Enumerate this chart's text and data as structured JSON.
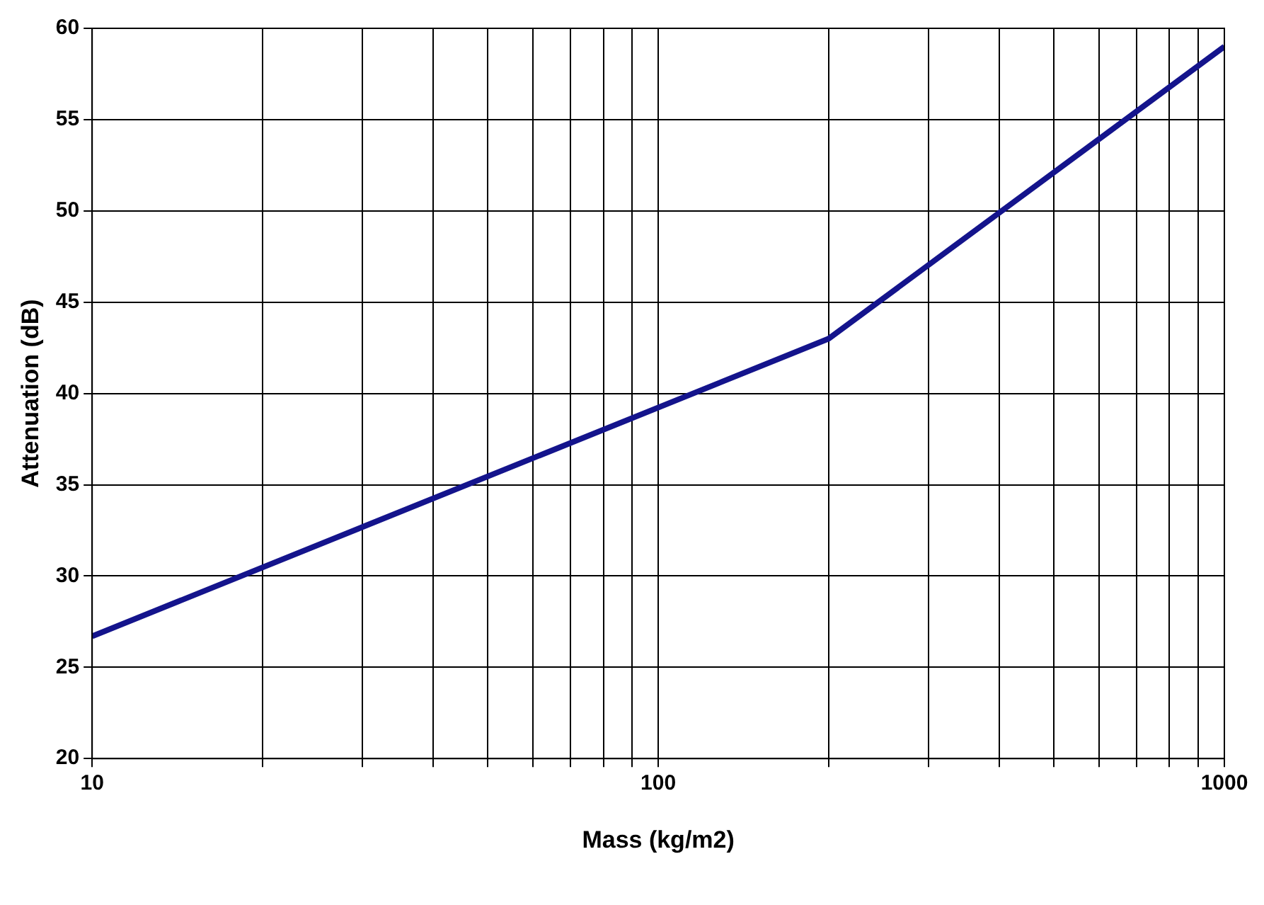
{
  "chart_data": {
    "type": "line",
    "xlabel": "Mass (kg/m2)",
    "ylabel": "Attenuation (dB)",
    "log": "x",
    "x": [
      10,
      200,
      1000
    ],
    "series": [
      {
        "color": "#14148c",
        "values": [
          26.7,
          43,
          59
        ]
      }
    ],
    "xlim": [
      10,
      1000
    ],
    "xticks": [
      10,
      {
        "value": 20,
        "label": null
      },
      {
        "value": 30,
        "label": null
      },
      {
        "value": 40,
        "label": null
      },
      {
        "value": 50,
        "label": null
      },
      {
        "value": 60,
        "label": null
      },
      {
        "value": 70,
        "label": null
      },
      {
        "value": 80,
        "label": null
      },
      {
        "value": 90,
        "label": null
      },
      100,
      {
        "value": 200,
        "label": null
      },
      {
        "value": 300,
        "label": null
      },
      {
        "value": 400,
        "label": null
      },
      {
        "value": 500,
        "label": null
      },
      {
        "value": 600,
        "label": null
      },
      {
        "value": 700,
        "label": null
      },
      {
        "value": 800,
        "label": null
      },
      {
        "value": 900,
        "label": null
      },
      1000
    ],
    "ylim": [
      20,
      60
    ],
    "yticks": [
      20,
      25,
      30,
      35,
      40,
      45,
      50,
      55,
      60
    ],
    "grid": true,
    "legend": false,
    "marker": "none",
    "line_style": "solid"
  }
}
